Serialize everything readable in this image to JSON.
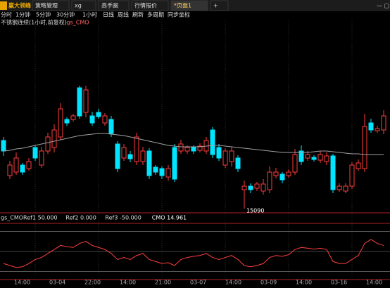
{
  "tabs": {
    "logo": "赢大领峰",
    "items": [
      "策略管理",
      "xg",
      "高手圈",
      "行情报价",
      "*页面1",
      "+"
    ]
  },
  "toolbar": [
    "分时",
    "1分钟",
    "5分钟",
    "30分钟",
    "1小时",
    "日线",
    "周线",
    "刷新",
    "多周期",
    "同步坐标"
  ],
  "chart_title": {
    "symbol": "不锈钢连续(1小时,前复权)",
    "indicator": "·gs_CMO"
  },
  "price_chart": {
    "type": "candlestick",
    "ylim": [
      15084,
      15359
    ],
    "low_label": "15090",
    "up_color": "#ff3b3b",
    "down_color": "#00e5ff",
    "ma_color": "#a0a0a0",
    "candles": [
      {
        "open": 15187,
        "high": 15192,
        "low": 15165,
        "close": 15172
      },
      {
        "open": 15137,
        "high": 15158,
        "low": 15132,
        "close": 15152
      },
      {
        "open": 15142,
        "high": 15170,
        "low": 15138,
        "close": 15162
      },
      {
        "open": 15152,
        "high": 15155,
        "low": 15138,
        "close": 15142
      },
      {
        "open": 15147,
        "high": 15162,
        "low": 15144,
        "close": 15157
      },
      {
        "open": 15177,
        "high": 15180,
        "low": 15158,
        "close": 15162
      },
      {
        "open": 15152,
        "high": 15178,
        "low": 15148,
        "close": 15172
      },
      {
        "open": 15172,
        "high": 15198,
        "low": 15168,
        "close": 15192
      },
      {
        "open": 15177,
        "high": 15210,
        "low": 15170,
        "close": 15202
      },
      {
        "open": 15192,
        "high": 15240,
        "low": 15188,
        "close": 15232
      },
      {
        "open": 15217,
        "high": 15220,
        "low": 15208,
        "close": 15212
      },
      {
        "open": 15217,
        "high": 15225,
        "low": 15214,
        "close": 15222
      },
      {
        "open": 15262,
        "high": 15265,
        "low": 15218,
        "close": 15222
      },
      {
        "open": 15227,
        "high": 15265,
        "low": 15220,
        "close": 15259
      },
      {
        "open": 15222,
        "high": 15228,
        "low": 15208,
        "close": 15212
      },
      {
        "open": 15227,
        "high": 15232,
        "low": 15218,
        "close": 15221
      },
      {
        "open": 15212,
        "high": 15226,
        "low": 15208,
        "close": 15222
      },
      {
        "open": 15217,
        "high": 15222,
        "low": 15192,
        "close": 15197
      },
      {
        "open": 15182,
        "high": 15186,
        "low": 15142,
        "close": 15147
      },
      {
        "open": 15162,
        "high": 15182,
        "low": 15158,
        "close": 15177
      },
      {
        "open": 15167,
        "high": 15172,
        "low": 15156,
        "close": 15161
      },
      {
        "open": 15157,
        "high": 15198,
        "low": 15152,
        "close": 15192
      },
      {
        "open": 15157,
        "high": 15178,
        "low": 15152,
        "close": 15172
      },
      {
        "open": 15172,
        "high": 15176,
        "low": 15132,
        "close": 15137
      },
      {
        "open": 15149,
        "high": 15152,
        "low": 15138,
        "close": 15142
      },
      {
        "open": 15147,
        "high": 15150,
        "low": 15132,
        "close": 15137
      },
      {
        "open": 15135,
        "high": 15152,
        "low": 15130,
        "close": 15147
      },
      {
        "open": 15177,
        "high": 15182,
        "low": 15128,
        "close": 15132
      },
      {
        "open": 15172,
        "high": 15188,
        "low": 15168,
        "close": 15182
      },
      {
        "open": 15172,
        "high": 15180,
        "low": 15168,
        "close": 15177
      },
      {
        "open": 15177,
        "high": 15180,
        "low": 15168,
        "close": 15172
      },
      {
        "open": 15173,
        "high": 15183,
        "low": 15170,
        "close": 15179
      },
      {
        "open": 15172,
        "high": 15192,
        "low": 15168,
        "close": 15187
      },
      {
        "open": 15202,
        "high": 15206,
        "low": 15162,
        "close": 15167
      },
      {
        "open": 15177,
        "high": 15182,
        "low": 15158,
        "close": 15162
      },
      {
        "open": 15152,
        "high": 15176,
        "low": 15148,
        "close": 15172
      },
      {
        "open": 15157,
        "high": 15178,
        "low": 15150,
        "close": 15172
      },
      {
        "open": 15162,
        "high": 15166,
        "low": 15142,
        "close": 15147
      },
      {
        "open": 15117,
        "high": 15130,
        "low": 15090,
        "close": 15122
      },
      {
        "open": 15122,
        "high": 15126,
        "low": 15112,
        "close": 15117
      },
      {
        "open": 15119,
        "high": 15128,
        "low": 15115,
        "close": 15125
      },
      {
        "open": 15115,
        "high": 15132,
        "low": 15110,
        "close": 15125
      },
      {
        "open": 15117,
        "high": 15150,
        "low": 15112,
        "close": 15142
      },
      {
        "open": 15137,
        "high": 15148,
        "low": 15133,
        "close": 15142
      },
      {
        "open": 15139,
        "high": 15142,
        "low": 15126,
        "close": 15131
      },
      {
        "open": 15137,
        "high": 15146,
        "low": 15134,
        "close": 15142
      },
      {
        "open": 15142,
        "high": 15175,
        "low": 15138,
        "close": 15167
      },
      {
        "open": 15172,
        "high": 15180,
        "low": 15152,
        "close": 15157
      },
      {
        "open": 15162,
        "high": 15172,
        "low": 15158,
        "close": 15167
      },
      {
        "open": 15163,
        "high": 15166,
        "low": 15157,
        "close": 15160
      },
      {
        "open": 15159,
        "high": 15172,
        "low": 15155,
        "close": 15167
      },
      {
        "open": 15157,
        "high": 15170,
        "low": 15152,
        "close": 15165
      },
      {
        "open": 15165,
        "high": 15168,
        "low": 15112,
        "close": 15117
      },
      {
        "open": 15117,
        "high": 15126,
        "low": 15114,
        "close": 15122
      },
      {
        "open": 15115,
        "high": 15126,
        "low": 15112,
        "close": 15122
      },
      {
        "open": 15122,
        "high": 15156,
        "low": 15118,
        "close": 15152
      },
      {
        "open": 15147,
        "high": 15160,
        "low": 15144,
        "close": 15155
      },
      {
        "open": 15147,
        "high": 15225,
        "low": 15142,
        "close": 15207
      },
      {
        "open": 15212,
        "high": 15218,
        "low": 15198,
        "close": 15202
      },
      {
        "open": 15201,
        "high": 15208,
        "low": 15198,
        "close": 15204
      },
      {
        "open": 15202,
        "high": 15230,
        "low": 15196,
        "close": 15222
      }
    ],
    "ma": [
      15172,
      15173,
      15175,
      15176,
      15178,
      15180,
      15182,
      15184,
      15186,
      15188,
      15190,
      15192,
      15194,
      15195,
      15196,
      15197,
      15197,
      15196,
      15195,
      15194,
      15192,
      15190,
      15188,
      15186,
      15184,
      15182,
      15180,
      15179,
      15178,
      15178,
      15178,
      15178,
      15179,
      15180,
      15180,
      15179,
      15178,
      15177,
      15176,
      15175,
      15174,
      15173,
      15172,
      15171,
      15170,
      15170,
      15170,
      15170,
      15170,
      15171,
      15172,
      15172,
      15171,
      15170,
      15169,
      15168,
      15168,
      15167,
      15167,
      15167,
      15167
    ]
  },
  "indicator": {
    "legend": [
      "gs_CMORef1 50.000",
      "Ref2 0.000",
      "Ref3 -50.000",
      "CMO 14.961"
    ],
    "ylim": [
      -70,
      70
    ],
    "refs": [
      50,
      0,
      -50
    ],
    "color": "#ff4040",
    "values": [
      -30,
      -35,
      -40,
      -38,
      -30,
      -20,
      -15,
      -5,
      5,
      15,
      12,
      10,
      20,
      25,
      15,
      10,
      5,
      -5,
      -20,
      -15,
      -20,
      -10,
      -5,
      -20,
      -25,
      -30,
      -28,
      -35,
      -20,
      -15,
      -12,
      -10,
      -5,
      -15,
      -20,
      -15,
      -10,
      -20,
      -35,
      -38,
      -35,
      -30,
      -15,
      -10,
      -12,
      -8,
      5,
      10,
      8,
      6,
      8,
      5,
      -25,
      -30,
      -30,
      -20,
      -10,
      20,
      30,
      20,
      14.961
    ]
  },
  "time_axis": [
    "14:00",
    "03-04",
    "22:00",
    "14:00",
    "21:00",
    "03-07",
    "14:00",
    "03-09",
    "14:00",
    "03-16",
    "14:00"
  ]
}
